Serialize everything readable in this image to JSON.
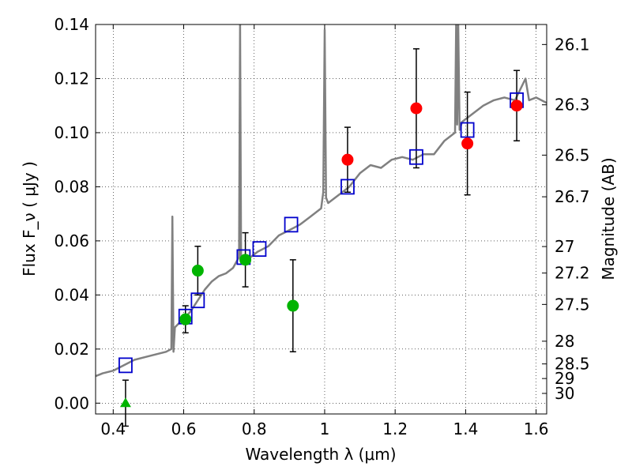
{
  "chart_data": {
    "type": "scatter",
    "xlabel": "Wavelength  λ (μm)",
    "ylabel": "Flux  F_ν  ( μJy )",
    "ylabel_right": "Magnitude (AB)",
    "xlim": [
      0.35,
      1.63
    ],
    "ylim": [
      -0.004,
      0.14
    ],
    "x_ticks": [
      0.4,
      0.6,
      0.8,
      1.0,
      1.2,
      1.4,
      1.6
    ],
    "x_tick_labels": [
      "0.4",
      "0.6",
      "0.8",
      "1",
      "1.2",
      "1.4",
      "1.6"
    ],
    "y_ticks": [
      0.0,
      0.02,
      0.04,
      0.06,
      0.08,
      0.1,
      0.12,
      0.14
    ],
    "y_tick_labels": [
      "0.00",
      "0.02",
      "0.04",
      "0.06",
      "0.08",
      "0.10",
      "0.12",
      "0.14"
    ],
    "right_ticks": [
      {
        "label": "26.1",
        "flux": 0.1326
      },
      {
        "label": "26.3",
        "flux": 0.1103
      },
      {
        "label": "26.5",
        "flux": 0.0917
      },
      {
        "label": "26.7",
        "flux": 0.0763
      },
      {
        "label": "27",
        "flux": 0.0579
      },
      {
        "label": "27.2",
        "flux": 0.0481
      },
      {
        "label": "27.5",
        "flux": 0.0365
      },
      {
        "label": "28",
        "flux": 0.0229
      },
      {
        "label": "28.5",
        "flux": 0.0145
      },
      {
        "label": "29",
        "flux": 0.0091
      },
      {
        "label": "30",
        "flux": 0.0036
      }
    ],
    "grid": true,
    "colors": {
      "spectrum": "#808080",
      "model_points": "#0000cc",
      "green_points": "#00b400",
      "red_points": "#ff0000",
      "errorbar": "#000000"
    },
    "spectrum": {
      "x": [
        0.35,
        0.37,
        0.4,
        0.43,
        0.46,
        0.49,
        0.52,
        0.55,
        0.565,
        0.568,
        0.571,
        0.575,
        0.59,
        0.6,
        0.62,
        0.64,
        0.66,
        0.68,
        0.7,
        0.72,
        0.74,
        0.757,
        0.76,
        0.763,
        0.766,
        0.77,
        0.79,
        0.81,
        0.84,
        0.87,
        0.9,
        0.93,
        0.96,
        0.99,
        0.996,
        1.0,
        1.004,
        1.01,
        1.04,
        1.07,
        1.1,
        1.13,
        1.16,
        1.19,
        1.22,
        1.25,
        1.28,
        1.31,
        1.34,
        1.37,
        1.373,
        1.376,
        1.379,
        1.383,
        1.39,
        1.42,
        1.45,
        1.48,
        1.51,
        1.54,
        1.57,
        1.58,
        1.6,
        1.63
      ],
      "y": [
        0.01,
        0.011,
        0.012,
        0.014,
        0.016,
        0.017,
        0.018,
        0.019,
        0.02,
        0.069,
        0.019,
        0.028,
        0.03,
        0.031,
        0.034,
        0.038,
        0.042,
        0.045,
        0.047,
        0.048,
        0.05,
        0.054,
        0.14,
        0.052,
        0.053,
        0.052,
        0.054,
        0.056,
        0.058,
        0.062,
        0.064,
        0.066,
        0.069,
        0.072,
        0.078,
        0.138,
        0.076,
        0.074,
        0.077,
        0.08,
        0.085,
        0.088,
        0.087,
        0.09,
        0.091,
        0.09,
        0.092,
        0.092,
        0.097,
        0.1,
        0.14,
        0.103,
        0.14,
        0.101,
        0.104,
        0.107,
        0.11,
        0.112,
        0.113,
        0.112,
        0.12,
        0.112,
        0.113,
        0.111
      ]
    },
    "model_points": {
      "x": [
        0.435,
        0.605,
        0.64,
        0.77,
        0.815,
        0.905,
        1.065,
        1.26,
        1.405,
        1.545
      ],
      "y": [
        0.014,
        0.032,
        0.038,
        0.054,
        0.057,
        0.066,
        0.08,
        0.091,
        0.101,
        0.112
      ]
    },
    "green_points": {
      "x": [
        0.605,
        0.64,
        0.775,
        0.91
      ],
      "y": [
        0.031,
        0.049,
        0.053,
        0.036
      ],
      "err": [
        0.005,
        0.009,
        0.01,
        0.017
      ]
    },
    "green_upper_limit": {
      "x": 0.435,
      "y": 0.0,
      "err": 0.0085
    },
    "red_points": {
      "x": [
        1.065,
        1.26,
        1.405,
        1.545
      ],
      "y": [
        0.09,
        0.109,
        0.096,
        0.11
      ],
      "err": [
        0.012,
        0.022,
        0.019,
        0.013
      ]
    }
  }
}
